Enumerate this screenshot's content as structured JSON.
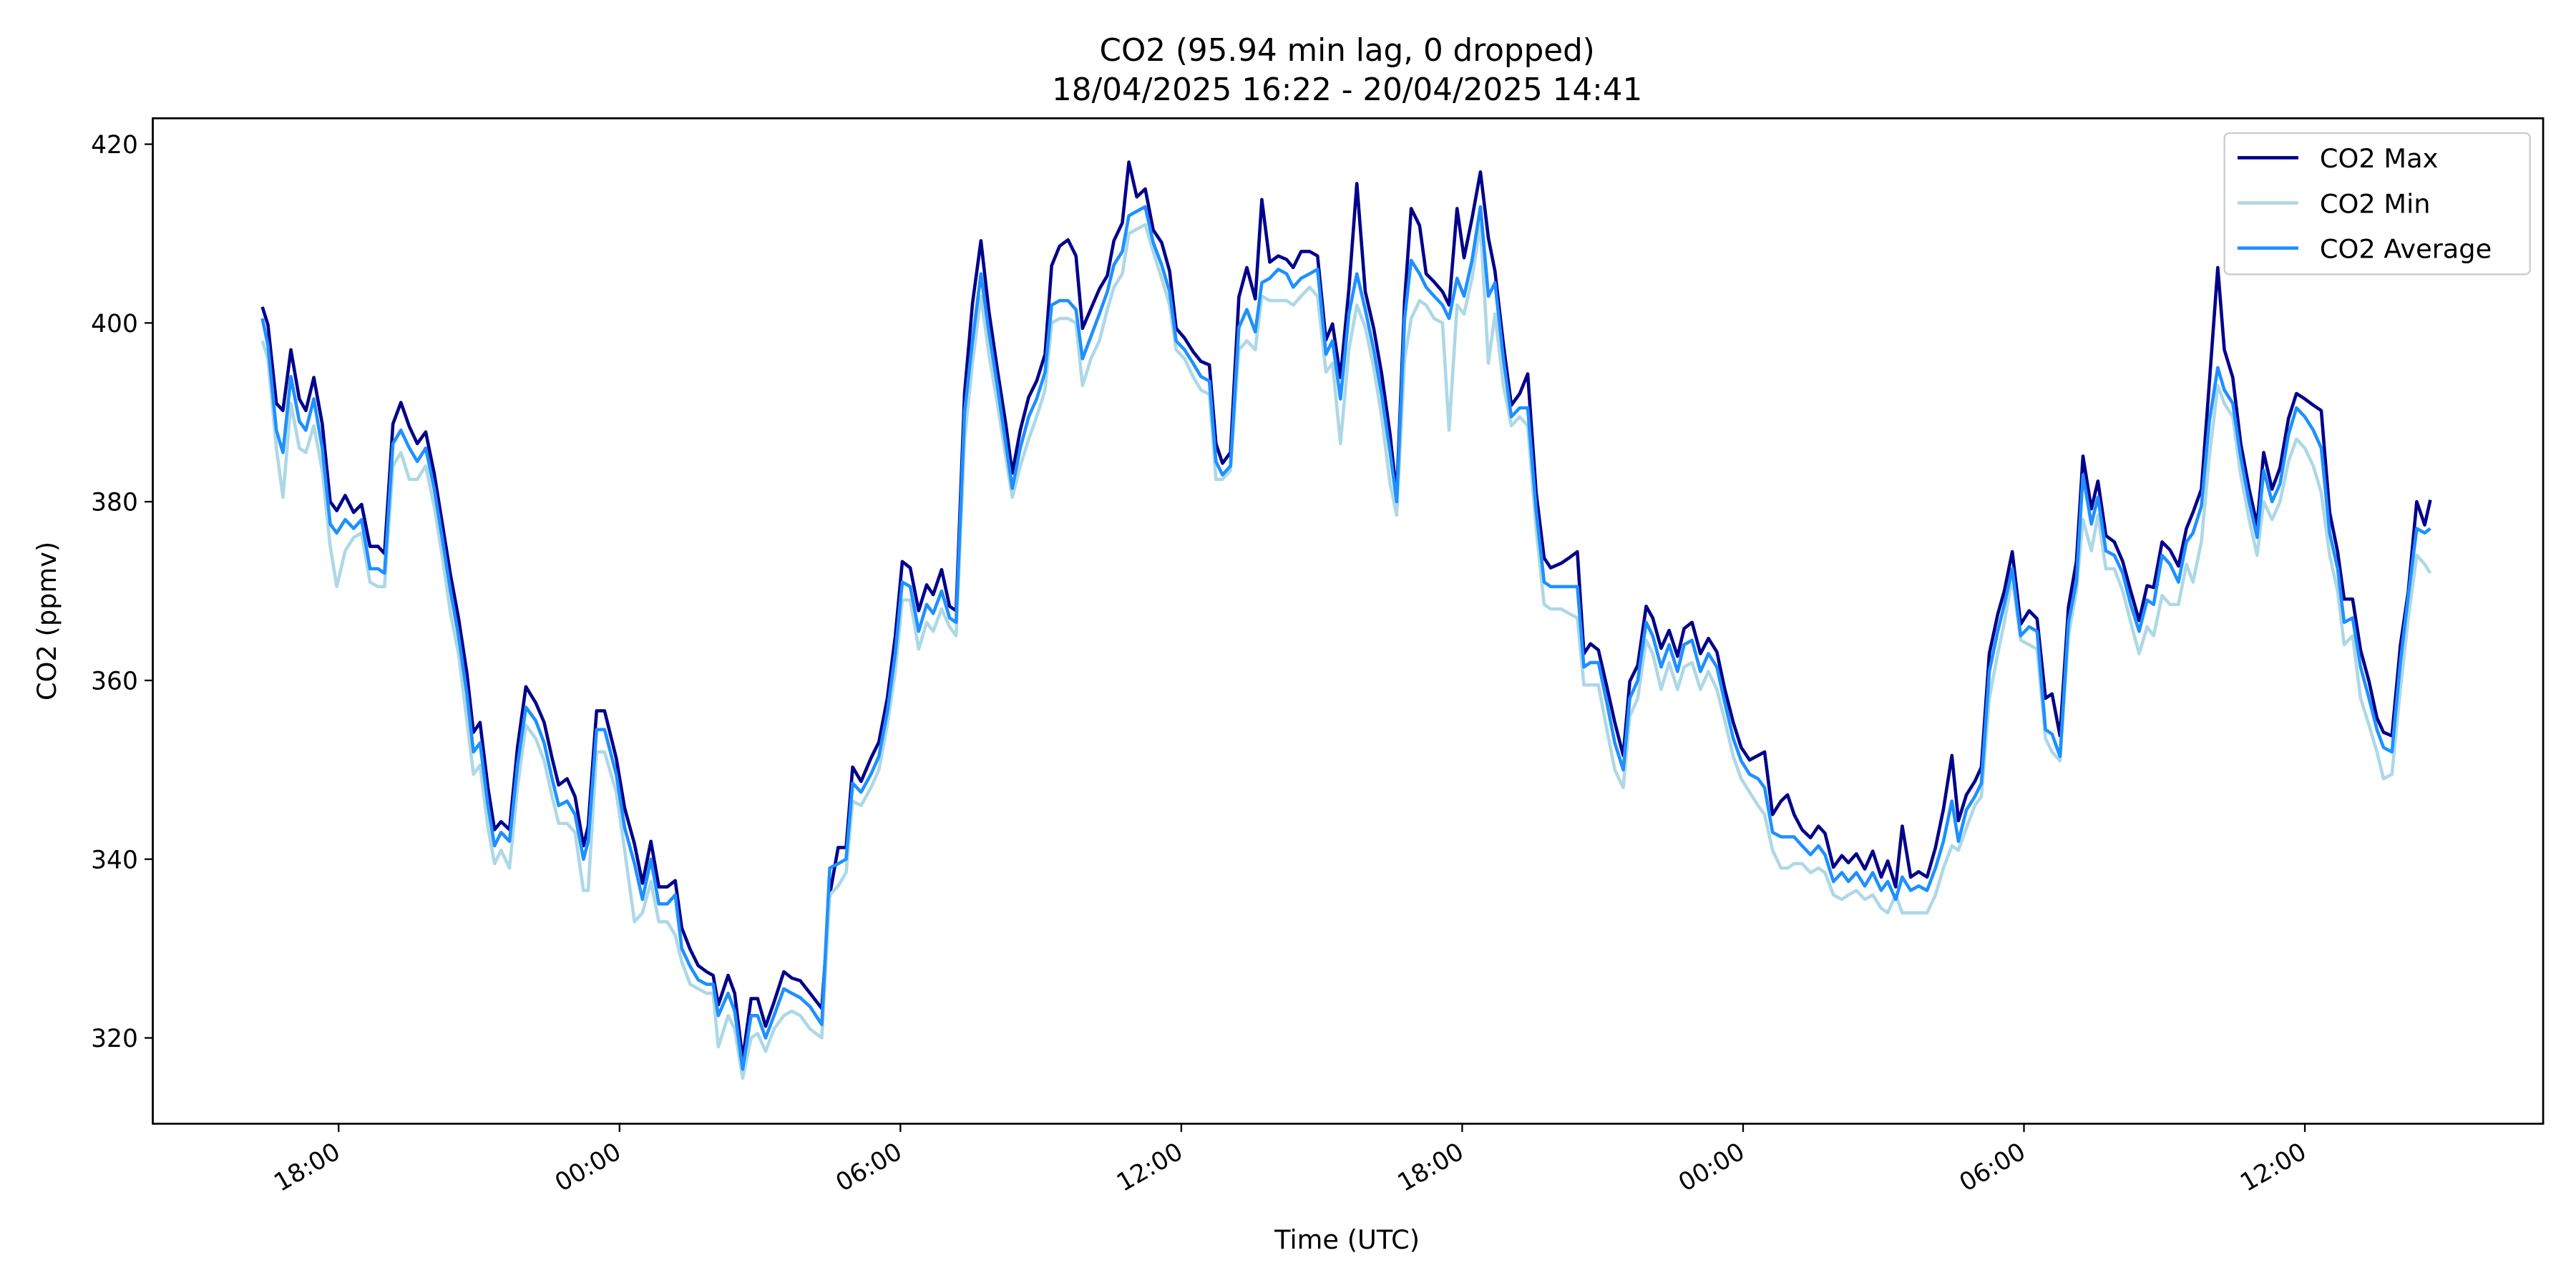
{
  "chart_data": {
    "type": "line",
    "title": "CO2 (95.94 min lag, 0 dropped)",
    "subtitle": "18/04/2025 16:22 - 20/04/2025 14:41",
    "xlabel": "Time (UTC)",
    "ylabel": "CO2 (ppmv)",
    "legend": "upper right",
    "xlim": [
      14.03,
      65.09
    ],
    "ylim": [
      310.4,
      422.9
    ],
    "xticks": [
      {
        "value": 18,
        "label": "18:00"
      },
      {
        "value": 24,
        "label": "00:00"
      },
      {
        "value": 30,
        "label": "06:00"
      },
      {
        "value": 36,
        "label": "12:00"
      },
      {
        "value": 42,
        "label": "18:00"
      },
      {
        "value": 48,
        "label": "00:00"
      },
      {
        "value": 54,
        "label": "06:00"
      },
      {
        "value": 60,
        "label": "12:00"
      }
    ],
    "yticks": [
      320,
      340,
      360,
      380,
      400,
      420
    ],
    "x": [
      16.37,
      16.49,
      16.67,
      16.81,
      16.98,
      17.16,
      17.3,
      17.47,
      17.65,
      17.82,
      17.96,
      18.14,
      18.32,
      18.49,
      18.67,
      18.84,
      18.98,
      19.16,
      19.33,
      19.51,
      19.68,
      19.86,
      20.04,
      20.21,
      20.39,
      20.56,
      20.74,
      20.88,
      21.02,
      21.19,
      21.33,
      21.47,
      21.65,
      21.82,
      22.0,
      22.21,
      22.39,
      22.56,
      22.7,
      22.88,
      23.05,
      23.23,
      23.33,
      23.51,
      23.68,
      23.93,
      24.11,
      24.32,
      24.49,
      24.67,
      24.84,
      25.02,
      25.19,
      25.33,
      25.51,
      25.68,
      25.86,
      26.0,
      26.11,
      26.32,
      26.46,
      26.63,
      26.81,
      26.95,
      27.12,
      27.3,
      27.51,
      27.68,
      27.86,
      28.07,
      28.32,
      28.49,
      28.67,
      28.84,
      28.98,
      29.16,
      29.37,
      29.54,
      29.72,
      29.89,
      30.04,
      30.21,
      30.39,
      30.56,
      30.7,
      30.88,
      31.05,
      31.19,
      31.37,
      31.54,
      31.72,
      31.89,
      32.07,
      32.25,
      32.39,
      32.56,
      32.74,
      32.91,
      33.09,
      33.23,
      33.4,
      33.58,
      33.75,
      33.89,
      34.07,
      34.25,
      34.42,
      34.56,
      34.74,
      34.88,
      35.05,
      35.23,
      35.4,
      35.58,
      35.75,
      35.89,
      36.07,
      36.25,
      36.42,
      36.6,
      36.74,
      36.88,
      37.05,
      37.23,
      37.4,
      37.58,
      37.72,
      37.89,
      38.07,
      38.25,
      38.39,
      38.56,
      38.74,
      38.91,
      39.09,
      39.23,
      39.4,
      39.58,
      39.75,
      39.93,
      40.11,
      40.28,
      40.46,
      40.6,
      40.77,
      40.91,
      41.09,
      41.23,
      41.4,
      41.58,
      41.72,
      41.89,
      42.04,
      42.21,
      42.39,
      42.56,
      42.7,
      42.88,
      43.05,
      43.23,
      43.4,
      43.58,
      43.75,
      43.89,
      44.11,
      44.28,
      44.46,
      44.6,
      44.74,
      44.91,
      45.09,
      45.26,
      45.44,
      45.58,
      45.75,
      45.93,
      46.07,
      46.25,
      46.42,
      46.6,
      46.74,
      46.91,
      47.09,
      47.26,
      47.44,
      47.61,
      47.79,
      47.96,
      48.14,
      48.32,
      48.46,
      48.63,
      48.81,
      48.95,
      49.09,
      49.26,
      49.44,
      49.61,
      49.75,
      49.93,
      50.11,
      50.25,
      50.42,
      50.6,
      50.77,
      50.95,
      51.09,
      51.26,
      51.4,
      51.58,
      51.75,
      51.93,
      52.11,
      52.28,
      52.46,
      52.6,
      52.77,
      52.95,
      53.09,
      53.26,
      53.44,
      53.58,
      53.75,
      53.93,
      54.11,
      54.28,
      54.46,
      54.6,
      54.77,
      54.95,
      55.12,
      55.26,
      55.44,
      55.58,
      55.75,
      55.93,
      56.11,
      56.28,
      56.46,
      56.63,
      56.77,
      56.95,
      57.12,
      57.3,
      57.47,
      57.61,
      57.79,
      57.96,
      58.14,
      58.28,
      58.46,
      58.63,
      58.81,
      58.98,
      59.12,
      59.3,
      59.47,
      59.65,
      59.82,
      60.0,
      60.18,
      60.35,
      60.53,
      60.7,
      60.84,
      61.02,
      61.19,
      61.37,
      61.54,
      61.68,
      61.86,
      62.04,
      62.21,
      62.39,
      62.56,
      62.68
    ],
    "series": [
      {
        "name": "CO2 Max",
        "color": "#00008b",
        "values": [
          401.8,
          399.8,
          391,
          390.2,
          397,
          391.5,
          390.2,
          393.9,
          388.7,
          380,
          379,
          380.7,
          378.8,
          379.7,
          375,
          375,
          374.2,
          388.7,
          391.1,
          388.4,
          386.5,
          387.8,
          383.2,
          377.7,
          371.8,
          367,
          360.8,
          354.2,
          355.3,
          348,
          343.3,
          344.2,
          343.3,
          352.5,
          359.3,
          357.5,
          355.3,
          351.3,
          348.3,
          349,
          347,
          341.5,
          343.7,
          356.6,
          356.6,
          351.3,
          345.7,
          341.7,
          337.3,
          342,
          336.9,
          336.9,
          337.6,
          332.3,
          329.9,
          328.1,
          327.4,
          327,
          323.7,
          327,
          325,
          317.6,
          324.4,
          324.4,
          321.3,
          324,
          327.4,
          326.7,
          326.4,
          325,
          323.3,
          336,
          341.3,
          341.3,
          350.3,
          348.7,
          351.3,
          353.1,
          358,
          364.9,
          373.3,
          372.6,
          367.8,
          370.7,
          369.6,
          372.4,
          368.3,
          367.8,
          392.1,
          402.2,
          409.2,
          401.3,
          394.8,
          388.7,
          383.2,
          388,
          391.7,
          393.5,
          396.5,
          406.4,
          408.6,
          409.3,
          407.5,
          399.4,
          401.6,
          403.8,
          405.3,
          409.2,
          411.2,
          418,
          414.1,
          415,
          410.4,
          409,
          405.8,
          399.4,
          398.3,
          396.8,
          395.7,
          395.3,
          386.5,
          384.3,
          385.5,
          402.9,
          406.2,
          402.7,
          413.8,
          406.8,
          407.5,
          407.1,
          406.2,
          408,
          408,
          407.5,
          398.1,
          399.9,
          393.9,
          403.8,
          415.6,
          403.5,
          399.4,
          394.3,
          387.5,
          380.7,
          402.5,
          412.8,
          410.9,
          405.5,
          404.6,
          403.5,
          402,
          412.8,
          407.3,
          411.7,
          416.9,
          409.5,
          405.8,
          397.6,
          390.8,
          392.1,
          394.3,
          381,
          373.7,
          372.6,
          373.1,
          373.7,
          374.4,
          363,
          364.1,
          363.4,
          359.3,
          355.3,
          351.6,
          359.9,
          361.7,
          368.3,
          367,
          363.6,
          365.6,
          362.7,
          365.8,
          366.5,
          363,
          364.7,
          363.2,
          359,
          355.3,
          352.5,
          351.1,
          351.6,
          352,
          345,
          346.5,
          347.2,
          345,
          343.3,
          342.4,
          343.7,
          342.9,
          339.1,
          340.4,
          339.6,
          340.6,
          338.9,
          340.9,
          338,
          339.8,
          336.9,
          343.7,
          338,
          338.6,
          338,
          341.3,
          345.6,
          351.6,
          344.3,
          347.2,
          348.7,
          350.3,
          363,
          367.4,
          370,
          374.4,
          366.3,
          367.8,
          366.9,
          358,
          358.5,
          353.8,
          368.2,
          373.3,
          385.1,
          379.2,
          382.3,
          376.2,
          375.5,
          373.3,
          370,
          366.7,
          370.6,
          370.4,
          375.5,
          374.6,
          372.8,
          377,
          378.8,
          381.4,
          393.3,
          406.2,
          397,
          393.9,
          386.5,
          381.4,
          377.4,
          385.5,
          381.4,
          383.8,
          389.3,
          392.1,
          391.5,
          390.8,
          390.2,
          378.8,
          374.4,
          369.1,
          369.1,
          363.4,
          359.9,
          355.8,
          354.2,
          353.8,
          363.9,
          370,
          380,
          377.4,
          380.2
        ]
      },
      {
        "name": "CO2 Min",
        "color": "#add8e6",
        "values": [
          398,
          396,
          386,
          380.5,
          391,
          386,
          385.5,
          388.5,
          383.5,
          375,
          370.5,
          374.5,
          376,
          376.5,
          371,
          370.5,
          370.5,
          384,
          385.5,
          382.5,
          382.5,
          384,
          379.5,
          374,
          367.5,
          363,
          355.5,
          349.5,
          350.5,
          343.5,
          339.5,
          341,
          339,
          348,
          355,
          353.5,
          351,
          347,
          344,
          344,
          343,
          336.5,
          336.5,
          352,
          352,
          347.5,
          341,
          333,
          334,
          337.5,
          333,
          333,
          331.5,
          328.5,
          326,
          325.5,
          325,
          325,
          319,
          322.5,
          321,
          315.5,
          320,
          320.5,
          318.5,
          321,
          322.5,
          323,
          322.5,
          321,
          320,
          336,
          337,
          338.5,
          346.5,
          346,
          348,
          350,
          355,
          361,
          369,
          369,
          363.5,
          366.5,
          365.5,
          368,
          366,
          365,
          387,
          395.5,
          403,
          396.5,
          391,
          385,
          380.5,
          384,
          387,
          389.5,
          392.5,
          400,
          400.5,
          400.5,
          400,
          393,
          396,
          398,
          401.5,
          404,
          405.5,
          410,
          410.5,
          411,
          408,
          405,
          402,
          397,
          396,
          394,
          392.5,
          392,
          382.5,
          382.5,
          383.5,
          397,
          398,
          397,
          403,
          402.5,
          402.5,
          402.5,
          402,
          403,
          404,
          403,
          394.5,
          395.5,
          386.5,
          397,
          402,
          399.5,
          395,
          389.5,
          382,
          378.5,
          396,
          400.5,
          402.5,
          402,
          400.5,
          400,
          388,
          402,
          401,
          405,
          411,
          395.5,
          401,
          393,
          388.5,
          389.5,
          388.5,
          377,
          368.5,
          368,
          368,
          367.5,
          367,
          359.5,
          359.5,
          359.5,
          354.5,
          350,
          348,
          356,
          358,
          364.5,
          363,
          359,
          362,
          359,
          361.5,
          362,
          359,
          361,
          359,
          355.5,
          351.5,
          349,
          347.5,
          346,
          345,
          341,
          339,
          339,
          339.5,
          339.5,
          338.5,
          339,
          338.5,
          336,
          335.5,
          336,
          336.5,
          335.5,
          336,
          334.5,
          334,
          336,
          334,
          334,
          334,
          334,
          336,
          339,
          341.5,
          341,
          343.5,
          346,
          347,
          358,
          363,
          366.5,
          371.5,
          364.5,
          364,
          363.5,
          353.5,
          352,
          351,
          365,
          370,
          378,
          374.5,
          378.5,
          372.5,
          372.5,
          370,
          366.5,
          363,
          366,
          365,
          369.5,
          368.5,
          368.5,
          373,
          371,
          375.5,
          385,
          393,
          391,
          389.5,
          383,
          378,
          374,
          380,
          378,
          380,
          384.5,
          387,
          386,
          384,
          381,
          374,
          370,
          364,
          365,
          358,
          355,
          352,
          349,
          349.5,
          359,
          367,
          374,
          373,
          372
        ]
      },
      {
        "name": "CO2 Average",
        "color": "#1e90ff",
        "values": [
          400.5,
          397.5,
          388,
          385.5,
          394,
          389,
          388,
          391.5,
          386,
          377.5,
          376.5,
          378,
          377,
          378,
          372.5,
          372.5,
          372,
          386.5,
          388,
          386,
          384.5,
          386,
          381.5,
          376,
          370,
          365,
          358.5,
          352,
          353,
          346,
          341.5,
          343,
          342,
          350.5,
          357,
          355.5,
          353,
          349,
          346,
          346.5,
          345,
          340,
          342,
          354.5,
          354.5,
          349.5,
          343.5,
          339.5,
          335.5,
          340,
          335,
          335,
          336,
          330,
          328,
          326.5,
          326,
          326,
          322.5,
          325,
          323,
          316.5,
          322.5,
          322.5,
          320,
          322.5,
          325.5,
          325,
          324.5,
          323.5,
          321.5,
          339,
          339.5,
          340,
          348.5,
          347.5,
          349.5,
          351.5,
          356.5,
          363,
          371,
          370.5,
          365.5,
          368.5,
          367.5,
          370,
          367,
          366.5,
          390,
          398,
          405.5,
          399,
          393,
          386.5,
          381.5,
          386,
          389.5,
          391.5,
          394.5,
          402,
          402.5,
          402.5,
          401.5,
          396,
          398.5,
          401,
          403.5,
          406.5,
          408,
          412,
          412.5,
          413,
          409,
          406.5,
          403.5,
          398,
          397,
          395.5,
          394,
          393.5,
          384.5,
          383,
          384,
          399.5,
          401.5,
          399,
          404.5,
          405,
          406,
          405.5,
          404,
          405,
          405.5,
          406,
          396.5,
          398,
          391.5,
          401,
          405.5,
          401.5,
          397,
          392,
          385.5,
          380,
          400.5,
          407,
          405.5,
          404,
          403,
          402,
          400.5,
          405,
          403,
          407,
          413,
          403,
          404.5,
          396,
          389.5,
          390.5,
          390.5,
          379,
          371,
          370.5,
          370.5,
          370.5,
          370.5,
          361.5,
          362,
          362,
          357.5,
          353,
          350,
          358,
          360,
          366.5,
          365,
          361.5,
          364,
          361,
          364,
          364.5,
          361,
          363,
          361.5,
          357.5,
          353.5,
          351,
          349.5,
          349,
          348,
          343,
          342.5,
          342.5,
          342.5,
          341.5,
          340.5,
          341.5,
          340.5,
          337.5,
          338.5,
          337.5,
          338.5,
          337,
          338.5,
          336.5,
          337.5,
          335.5,
          338,
          336.5,
          337,
          336.5,
          339,
          342,
          346.5,
          342,
          345.5,
          347,
          348.5,
          361,
          365.5,
          368.5,
          372.5,
          365,
          366,
          365.5,
          354.5,
          354,
          351.5,
          366.5,
          371,
          383,
          377.5,
          380.5,
          374.5,
          374,
          372,
          368.5,
          365.5,
          369,
          368.5,
          374,
          373,
          371,
          375.5,
          376.5,
          379.5,
          389,
          395,
          392.5,
          391,
          385,
          380,
          376,
          383.5,
          380,
          382,
          387.5,
          390.5,
          389.5,
          388,
          386,
          376.5,
          372.5,
          366.5,
          367,
          361.5,
          358,
          354.5,
          352.5,
          352,
          362,
          369.5,
          377,
          376.5,
          377
        ]
      }
    ]
  }
}
